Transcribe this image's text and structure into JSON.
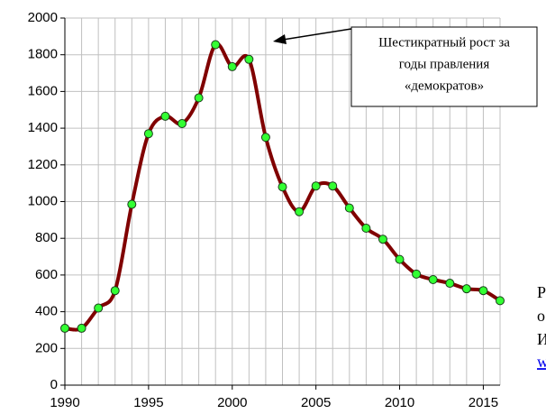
{
  "chart_data": {
    "type": "line",
    "x": [
      1990,
      1991,
      1992,
      1993,
      1994,
      1995,
      1996,
      1997,
      1998,
      1999,
      2000,
      2001,
      2002,
      2003,
      2004,
      2005,
      2006,
      2007,
      2008,
      2009,
      2010,
      2011,
      2012,
      2013,
      2014,
      2015,
      2016
    ],
    "values": [
      310,
      310,
      420,
      515,
      985,
      1370,
      1465,
      1425,
      1565,
      1855,
      1735,
      1775,
      1350,
      1080,
      945,
      1085,
      1085,
      965,
      855,
      795,
      685,
      605,
      575,
      555,
      525,
      515,
      460
    ],
    "color": "#800000",
    "marker_color": "#33ff33",
    "xlim": [
      1990,
      2016
    ],
    "xticks": [
      1990,
      1995,
      2000,
      2005,
      2010,
      2015
    ],
    "ylim": [
      0,
      2000
    ],
    "yticks": [
      0,
      200,
      400,
      600,
      800,
      1000,
      1200,
      1400,
      1600,
      1800,
      2000
    ],
    "grid": true,
    "annotation": [
      "Шестикратный рост за",
      "годы правления",
      "«демократов»"
    ],
    "side_text": [
      "Р",
      "о",
      "И",
      "w"
    ]
  }
}
